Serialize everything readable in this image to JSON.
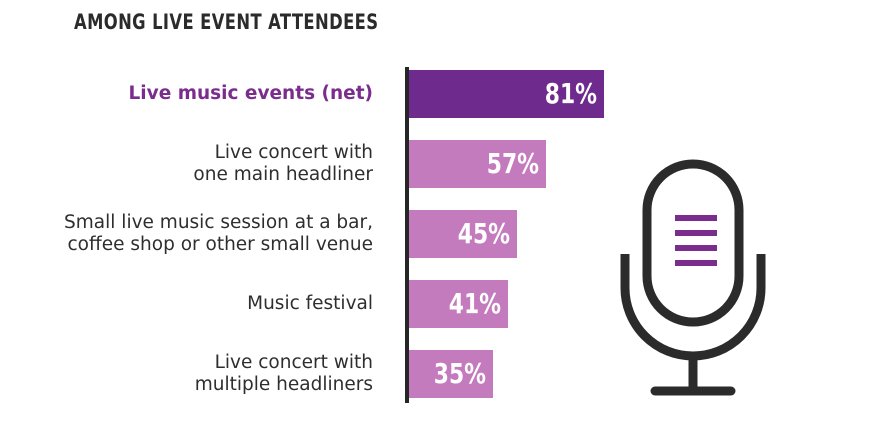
{
  "chart_data": {
    "type": "bar",
    "orientation": "horizontal",
    "title": "AMONG LIVE EVENT ATTENDEES",
    "categories": [
      [
        "Live music events (net)"
      ],
      [
        "Live concert with",
        "one main headliner"
      ],
      [
        "Small live music session at a bar,",
        "coffee shop or other small venue"
      ],
      [
        "Music festival"
      ],
      [
        "Live concert with",
        "multiple headliners"
      ]
    ],
    "values": [
      81,
      57,
      45,
      41,
      35
    ],
    "value_labels": [
      "81%",
      "57%",
      "45%",
      "41%",
      "35%"
    ],
    "highlight_index": 0,
    "unit": "%",
    "xlim": [
      0,
      100
    ]
  },
  "colors": {
    "highlight": "#6e2a8c",
    "bar": "#c47bbd",
    "highlight_text": "#7b2d8e",
    "axis": "#262626",
    "icon_dark": "#2b2b2b",
    "icon_accent": "#7b2d8e"
  },
  "icons": {
    "microphone": "microphone-icon"
  }
}
